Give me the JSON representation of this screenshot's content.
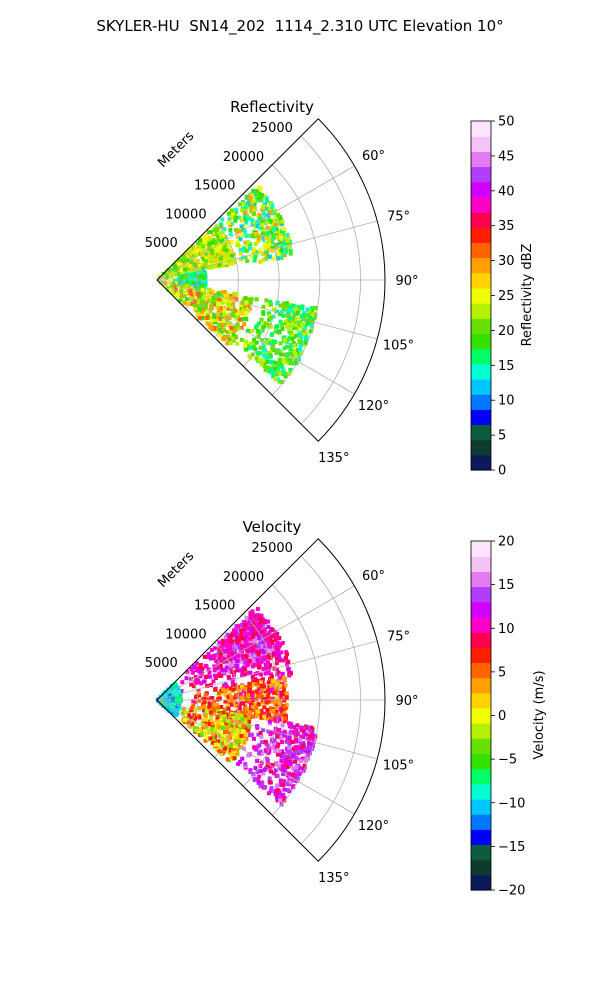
{
  "figure_title": "SKYLER-HU  SN14_202  1114_2.310 UTC Elevation 10°",
  "chart_data": [
    {
      "type": "polar-sector",
      "title": "Reflectivity",
      "radial_label": "Meters",
      "radial_ticks": [
        5000,
        10000,
        15000,
        20000,
        25000
      ],
      "radial_tick_labels": [
        "5000",
        "10000",
        "15000",
        "20000",
        "25000"
      ],
      "azimuth_ticks": [
        60,
        75,
        90,
        105,
        120,
        135
      ],
      "azimuth_tick_labels": [
        "60°",
        "75°",
        "90°",
        "105°",
        "120°",
        "135°"
      ],
      "azimuth_range": [
        45,
        135
      ],
      "grid": true,
      "colorbar": {
        "label": "Reflectivity dBZ",
        "range": [
          0,
          50
        ],
        "ticks": [
          0,
          5,
          10,
          15,
          20,
          25,
          30,
          35,
          40,
          45,
          50
        ],
        "tick_labels": [
          "0",
          "5",
          "10",
          "15",
          "20",
          "25",
          "30",
          "35",
          "40",
          "45",
          "50"
        ],
        "colors": [
          "#0a1a5c",
          "#0f3b2f",
          "#0d5c3c",
          "#0000ff",
          "#0078ff",
          "#00c8ff",
          "#00ffd2",
          "#00ff64",
          "#34e000",
          "#66e000",
          "#b4f000",
          "#f0ff00",
          "#ffd400",
          "#ffa000",
          "#ff6400",
          "#ff1e00",
          "#ff0050",
          "#ff00c8",
          "#d200ff",
          "#b43cff",
          "#e37cf0",
          "#f5c3f5",
          "#fde6fd"
        ]
      },
      "field_regions": [
        {
          "az": [
            47,
            78
          ],
          "r": [
            0,
            10000
          ],
          "values": [
            18,
            28
          ]
        },
        {
          "az": [
            47,
            80
          ],
          "r": [
            10000,
            17000
          ],
          "values": [
            12,
            30
          ]
        },
        {
          "az": [
            80,
            100
          ],
          "r": [
            2000,
            6000
          ],
          "values": [
            12,
            20
          ]
        },
        {
          "az": [
            100,
            132
          ],
          "r": [
            0,
            12000
          ],
          "values": [
            18,
            32
          ]
        },
        {
          "az": [
            100,
            130
          ],
          "r": [
            12000,
            20000
          ],
          "values": [
            14,
            24
          ]
        }
      ]
    },
    {
      "type": "polar-sector",
      "title": "Velocity",
      "radial_label": "Meters",
      "radial_ticks": [
        5000,
        10000,
        15000,
        20000,
        25000
      ],
      "radial_tick_labels": [
        "5000",
        "10000",
        "15000",
        "20000",
        "25000"
      ],
      "azimuth_ticks": [
        60,
        75,
        90,
        105,
        120,
        135
      ],
      "azimuth_tick_labels": [
        "60°",
        "75°",
        "90°",
        "105°",
        "120°",
        "135°"
      ],
      "azimuth_range": [
        45,
        135
      ],
      "grid": true,
      "colorbar": {
        "label": "Velocity (m/s)",
        "range": [
          -20,
          20
        ],
        "ticks": [
          -20,
          -15,
          -10,
          -5,
          0,
          5,
          10,
          15,
          20
        ],
        "tick_labels": [
          "−20",
          "−15",
          "−10",
          "−5",
          "0",
          "5",
          "10",
          "15",
          "20"
        ],
        "colors": [
          "#0a1a5c",
          "#0f3b2f",
          "#0d5c3c",
          "#0000ff",
          "#0078ff",
          "#00c8ff",
          "#00ffd2",
          "#00ff64",
          "#34e000",
          "#66e000",
          "#b4f000",
          "#f0ff00",
          "#ffd400",
          "#ffa000",
          "#ff6400",
          "#ff1e00",
          "#ff0050",
          "#ff00c8",
          "#d200ff",
          "#b43cff",
          "#e37cf0",
          "#f5c3f5",
          "#fde6fd"
        ]
      },
      "field_regions": [
        {
          "az": [
            47,
            70
          ],
          "r": [
            8000,
            16000
          ],
          "values": [
            14,
            16
          ]
        },
        {
          "az": [
            47,
            80
          ],
          "r": [
            3000,
            17000
          ],
          "values": [
            8,
            12
          ]
        },
        {
          "az": [
            80,
            100
          ],
          "r": [
            4000,
            16000
          ],
          "values": [
            2,
            10
          ]
        },
        {
          "az": [
            100,
            130
          ],
          "r": [
            3000,
            12000
          ],
          "values": [
            -4,
            8
          ]
        },
        {
          "az": [
            100,
            130
          ],
          "r": [
            12000,
            20000
          ],
          "values": [
            8,
            16
          ]
        },
        {
          "az": [
            47,
            132
          ],
          "r": [
            0,
            3000
          ],
          "values": [
            -12,
            -6
          ]
        }
      ]
    }
  ]
}
